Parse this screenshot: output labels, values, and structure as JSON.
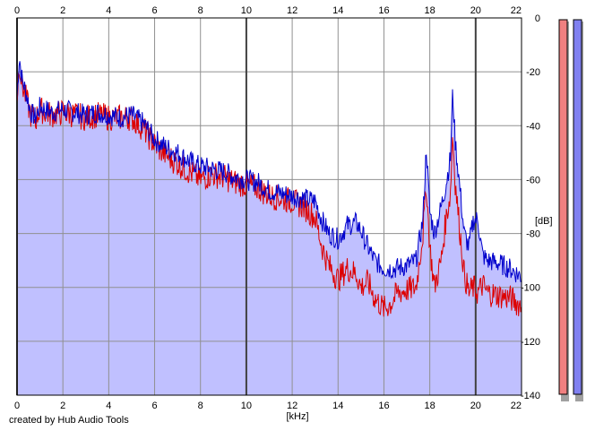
{
  "chart_data": {
    "type": "area",
    "title": "",
    "xlabel": "[kHz]",
    "ylabel": "[dB]",
    "xlim": [
      0,
      22
    ],
    "ylim": [
      -140,
      0
    ],
    "x_ticks": [
      "0",
      "2",
      "4",
      "6",
      "8",
      "10",
      "12",
      "14",
      "16",
      "18",
      "20",
      "22"
    ],
    "y_ticks": [
      "0",
      "-20",
      "-40",
      "-60",
      "-80",
      "-100",
      "-120",
      "-140"
    ],
    "grid": true,
    "fill_color": "#c0c0ff",
    "series": [
      {
        "color": "#0000cc",
        "x": [
          0,
          0.1,
          0.2,
          0.4,
          0.6,
          0.8,
          1.0,
          1.5,
          2.0,
          2.5,
          3.0,
          3.5,
          4.0,
          4.5,
          5.0,
          5.5,
          6.0,
          6.5,
          7.0,
          7.5,
          8.0,
          8.5,
          9.0,
          9.5,
          10.0,
          10.5,
          11.0,
          11.5,
          12.0,
          12.5,
          13.0,
          13.3,
          13.6,
          14.0,
          14.4,
          14.8,
          15.0,
          15.3,
          15.6,
          16.0,
          16.5,
          17.0,
          17.4,
          17.7,
          17.85,
          18.0,
          18.2,
          18.5,
          18.7,
          18.9,
          19.0,
          19.1,
          19.3,
          19.5,
          19.7,
          19.9,
          20.1,
          20.3,
          20.5,
          21.0,
          21.5,
          22.0
        ],
        "values": [
          -30,
          -14,
          -22,
          -28,
          -35,
          -37,
          -33,
          -35,
          -34,
          -35,
          -36,
          -35,
          -36,
          -37,
          -36,
          -39,
          -45,
          -48,
          -50,
          -53,
          -55,
          -56,
          -57,
          -59,
          -60,
          -61,
          -64,
          -65,
          -66,
          -67,
          -68,
          -75,
          -80,
          -82,
          -77,
          -76,
          -79,
          -85,
          -90,
          -93,
          -93,
          -92,
          -90,
          -75,
          -48,
          -72,
          -80,
          -70,
          -62,
          -52,
          -27,
          -45,
          -62,
          -80,
          -85,
          -75,
          -75,
          -88,
          -90,
          -91,
          -93,
          -96
        ]
      },
      {
        "color": "#dd0000",
        "x": [
          0,
          0.1,
          0.2,
          0.4,
          0.6,
          0.8,
          1.0,
          1.5,
          2.0,
          2.5,
          3.0,
          3.5,
          4.0,
          4.5,
          5.0,
          5.5,
          6.0,
          6.5,
          7.0,
          7.5,
          8.0,
          8.5,
          9.0,
          9.5,
          10.0,
          10.5,
          11.0,
          11.5,
          12.0,
          12.5,
          13.0,
          13.3,
          13.6,
          14.0,
          14.4,
          14.8,
          15.0,
          15.3,
          15.6,
          16.0,
          16.3,
          16.6,
          17.0,
          17.4,
          17.7,
          17.85,
          18.0,
          18.2,
          18.5,
          18.7,
          18.9,
          19.0,
          19.1,
          19.3,
          19.5,
          19.7,
          19.9,
          20.1,
          20.3,
          20.5,
          21.0,
          21.5,
          22.0
        ],
        "values": [
          -30,
          -16,
          -24,
          -30,
          -36,
          -38,
          -34,
          -36,
          -35,
          -36,
          -37,
          -36,
          -37,
          -37,
          -37,
          -41,
          -47,
          -51,
          -54,
          -57,
          -60,
          -58,
          -59,
          -61,
          -62,
          -63,
          -66,
          -67,
          -68,
          -70,
          -74,
          -85,
          -92,
          -97,
          -93,
          -95,
          -100,
          -98,
          -104,
          -108,
          -106,
          -102,
          -101,
          -100,
          -80,
          -62,
          -85,
          -100,
          -90,
          -75,
          -65,
          -42,
          -60,
          -78,
          -95,
          -102,
          -100,
          -102,
          -99,
          -102,
          -103,
          -104,
          -107
        ]
      }
    ],
    "level_meters": [
      {
        "color": "#f08080",
        "level": 1.0
      },
      {
        "color": "#8080f0",
        "level": 1.0
      }
    ]
  },
  "footer": {
    "credit": "created by Hub Audio Tools"
  }
}
